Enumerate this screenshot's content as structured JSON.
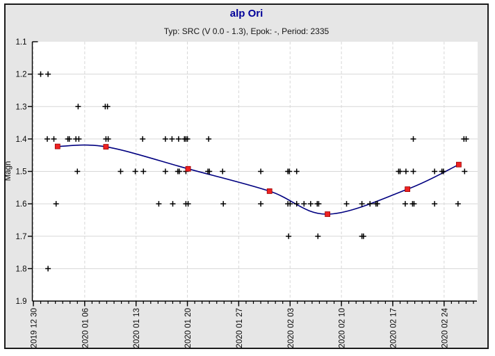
{
  "window": {
    "title": "alp Ori",
    "subtitle": "Typ: SRC (V 0.0 - 1.3), Epok: -, Period: 2335"
  },
  "colors": {
    "title_text": "#000099",
    "subtitle_text": "#141414",
    "panel_background": "#e6e6e6",
    "plot_background": "#ffffff",
    "gridline": "#d7d7d7",
    "axis": "#000000",
    "observation_marker": "#000000",
    "fit_curve": "#000080",
    "mean_marker_fill": "#ee2222",
    "mean_marker_border": "#990000"
  },
  "chart_data": {
    "type": "scatter",
    "title": "alp Ori",
    "subtitle": "Typ: SRC (V 0.0 - 1.3), Epok: -, Period: 2335",
    "xlabel": "",
    "ylabel": "Magn",
    "y_axis": {
      "min": 1.1,
      "max": 1.9,
      "step": 0.1,
      "inverted": true,
      "tick_labels": [
        "1.1",
        "1.2",
        "1.3",
        "1.4",
        "1.5",
        "1.6",
        "1.7",
        "1.8",
        "1.9"
      ]
    },
    "x_axis": {
      "unit": "days since first tick",
      "day_range": [
        0,
        60
      ],
      "minor_tick_every_days": 1,
      "major_ticks": [
        {
          "label": "2019 12 30",
          "day": 0
        },
        {
          "label": "2020 01 06",
          "day": 7
        },
        {
          "label": "2020 01 13",
          "day": 14
        },
        {
          "label": "2020 01 20",
          "day": 21
        },
        {
          "label": "2020 01 27",
          "day": 28
        },
        {
          "label": "2020 02 03",
          "day": 35
        },
        {
          "label": "2020 02 10",
          "day": 42
        },
        {
          "label": "2020 02 17",
          "day": 49
        },
        {
          "label": "2020 02 24",
          "day": 56
        }
      ]
    },
    "grid": {
      "horizontal": "solid",
      "vertical": "dashed"
    },
    "observations_day_mag": [
      [
        1.0,
        1.2
      ],
      [
        1.9,
        1.4
      ],
      [
        2.0,
        1.2
      ],
      [
        2.0,
        1.8
      ],
      [
        2.8,
        1.4
      ],
      [
        3.1,
        1.6
      ],
      [
        4.7,
        1.4
      ],
      [
        4.9,
        1.4
      ],
      [
        5.8,
        1.4
      ],
      [
        6.0,
        1.5
      ],
      [
        6.1,
        1.3
      ],
      [
        6.2,
        1.4
      ],
      [
        9.8,
        1.3
      ],
      [
        9.9,
        1.4
      ],
      [
        10.1,
        1.3
      ],
      [
        10.2,
        1.4
      ],
      [
        11.9,
        1.5
      ],
      [
        13.9,
        1.5
      ],
      [
        14.9,
        1.4
      ],
      [
        15.0,
        1.5
      ],
      [
        17.1,
        1.6
      ],
      [
        18.0,
        1.4
      ],
      [
        18.0,
        1.5
      ],
      [
        18.9,
        1.4
      ],
      [
        19.0,
        1.6
      ],
      [
        19.7,
        1.5
      ],
      [
        19.8,
        1.4
      ],
      [
        19.9,
        1.5
      ],
      [
        20.6,
        1.4
      ],
      [
        20.8,
        1.4
      ],
      [
        20.8,
        1.5
      ],
      [
        20.8,
        1.6
      ],
      [
        21.0,
        1.4
      ],
      [
        21.1,
        1.6
      ],
      [
        23.8,
        1.5
      ],
      [
        23.9,
        1.4
      ],
      [
        24.0,
        1.5
      ],
      [
        25.8,
        1.5
      ],
      [
        25.9,
        1.6
      ],
      [
        31.0,
        1.5
      ],
      [
        31.0,
        1.6
      ],
      [
        34.7,
        1.5
      ],
      [
        34.7,
        1.6
      ],
      [
        34.8,
        1.7
      ],
      [
        34.9,
        1.5
      ],
      [
        35.0,
        1.6
      ],
      [
        35.9,
        1.5
      ],
      [
        35.9,
        1.6
      ],
      [
        36.9,
        1.6
      ],
      [
        37.8,
        1.6
      ],
      [
        38.7,
        1.6
      ],
      [
        38.8,
        1.7
      ],
      [
        38.9,
        1.6
      ],
      [
        42.7,
        1.6
      ],
      [
        44.8,
        1.6
      ],
      [
        44.8,
        1.7
      ],
      [
        45.0,
        1.7
      ],
      [
        45.9,
        1.6
      ],
      [
        46.7,
        1.6
      ],
      [
        46.9,
        1.6
      ],
      [
        49.8,
        1.5
      ],
      [
        50.0,
        1.5
      ],
      [
        50.7,
        1.6
      ],
      [
        50.8,
        1.5
      ],
      [
        51.7,
        1.6
      ],
      [
        51.8,
        1.4
      ],
      [
        51.8,
        1.5
      ],
      [
        51.9,
        1.6
      ],
      [
        54.7,
        1.5
      ],
      [
        54.7,
        1.6
      ],
      [
        55.7,
        1.5
      ],
      [
        55.9,
        1.5
      ],
      [
        57.9,
        1.6
      ],
      [
        58.7,
        1.4
      ],
      [
        58.8,
        1.5
      ],
      [
        59.0,
        1.4
      ]
    ],
    "mean_points_day_mag": [
      [
        3.3,
        1.423
      ],
      [
        9.9,
        1.424
      ],
      [
        21.1,
        1.492
      ],
      [
        32.2,
        1.561
      ],
      [
        40.1,
        1.632
      ],
      [
        51.0,
        1.555
      ],
      [
        58.0,
        1.479
      ]
    ]
  }
}
